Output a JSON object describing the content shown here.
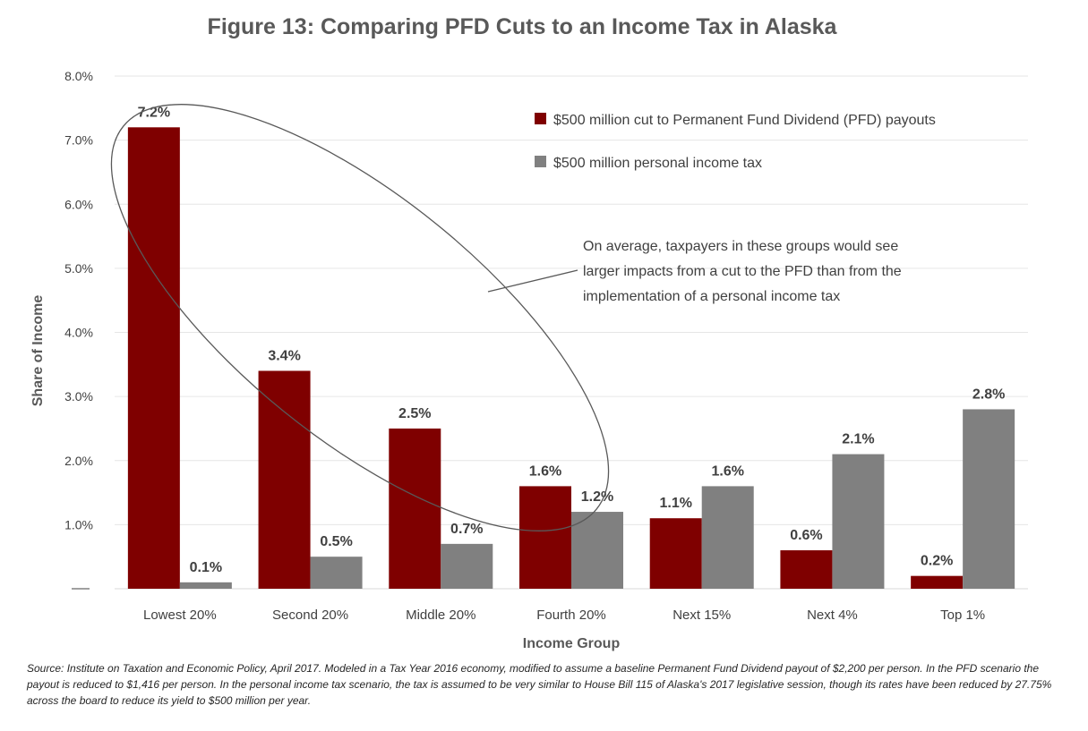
{
  "chart_data": {
    "type": "bar",
    "title": "Figure 13: Comparing PFD Cuts to an Income Tax in Alaska",
    "xlabel": "Income Group",
    "ylabel": "Share of Income",
    "ylim": [
      0,
      8
    ],
    "yticks": [
      "8.0%",
      "7.0%",
      "6.0%",
      "5.0%",
      "4.0%",
      "3.0%",
      "2.0%",
      "1.0%"
    ],
    "categories": [
      "Lowest 20%",
      "Second 20%",
      "Middle 20%",
      "Fourth 20%",
      "Next 15%",
      "Next 4%",
      "Top 1%"
    ],
    "series": [
      {
        "name": "$500 million cut to Permanent Fund Dividend (PFD) payouts",
        "color": "#7f0000",
        "values": [
          7.2,
          3.4,
          2.5,
          1.6,
          1.1,
          0.6,
          0.2
        ],
        "labels": [
          "7.2%",
          "3.4%",
          "2.5%",
          "1.6%",
          "1.1%",
          "0.6%",
          "0.2%"
        ]
      },
      {
        "name": "$500 million personal income tax",
        "color": "#808080",
        "values": [
          0.1,
          0.5,
          0.7,
          1.2,
          1.6,
          2.1,
          2.8
        ],
        "labels": [
          "0.1%",
          "0.5%",
          "0.7%",
          "1.2%",
          "1.6%",
          "2.1%",
          "2.8%"
        ]
      }
    ],
    "grid": true,
    "legend_position": "top-right",
    "annotation": [
      "On average, taxpayers in these groups would see",
      "larger impacts from a cut to the PFD than from the",
      "implementation of a personal income tax"
    ]
  },
  "source_note": "Source: Institute on Taxation and Economic Policy, April 2017.  Modeled in a Tax Year 2016 economy, modified to assume a baseline Permanent Fund Dividend payout of $2,200 per person. In the PFD scenario the payout is reduced to $1,416 per person. In the personal income tax scenario, the tax is assumed to be very similar to House Bill 115 of Alaska's 2017 legislative session, though its rates have been reduced by 27.75% across the board to reduce its yield to $500 million per year."
}
